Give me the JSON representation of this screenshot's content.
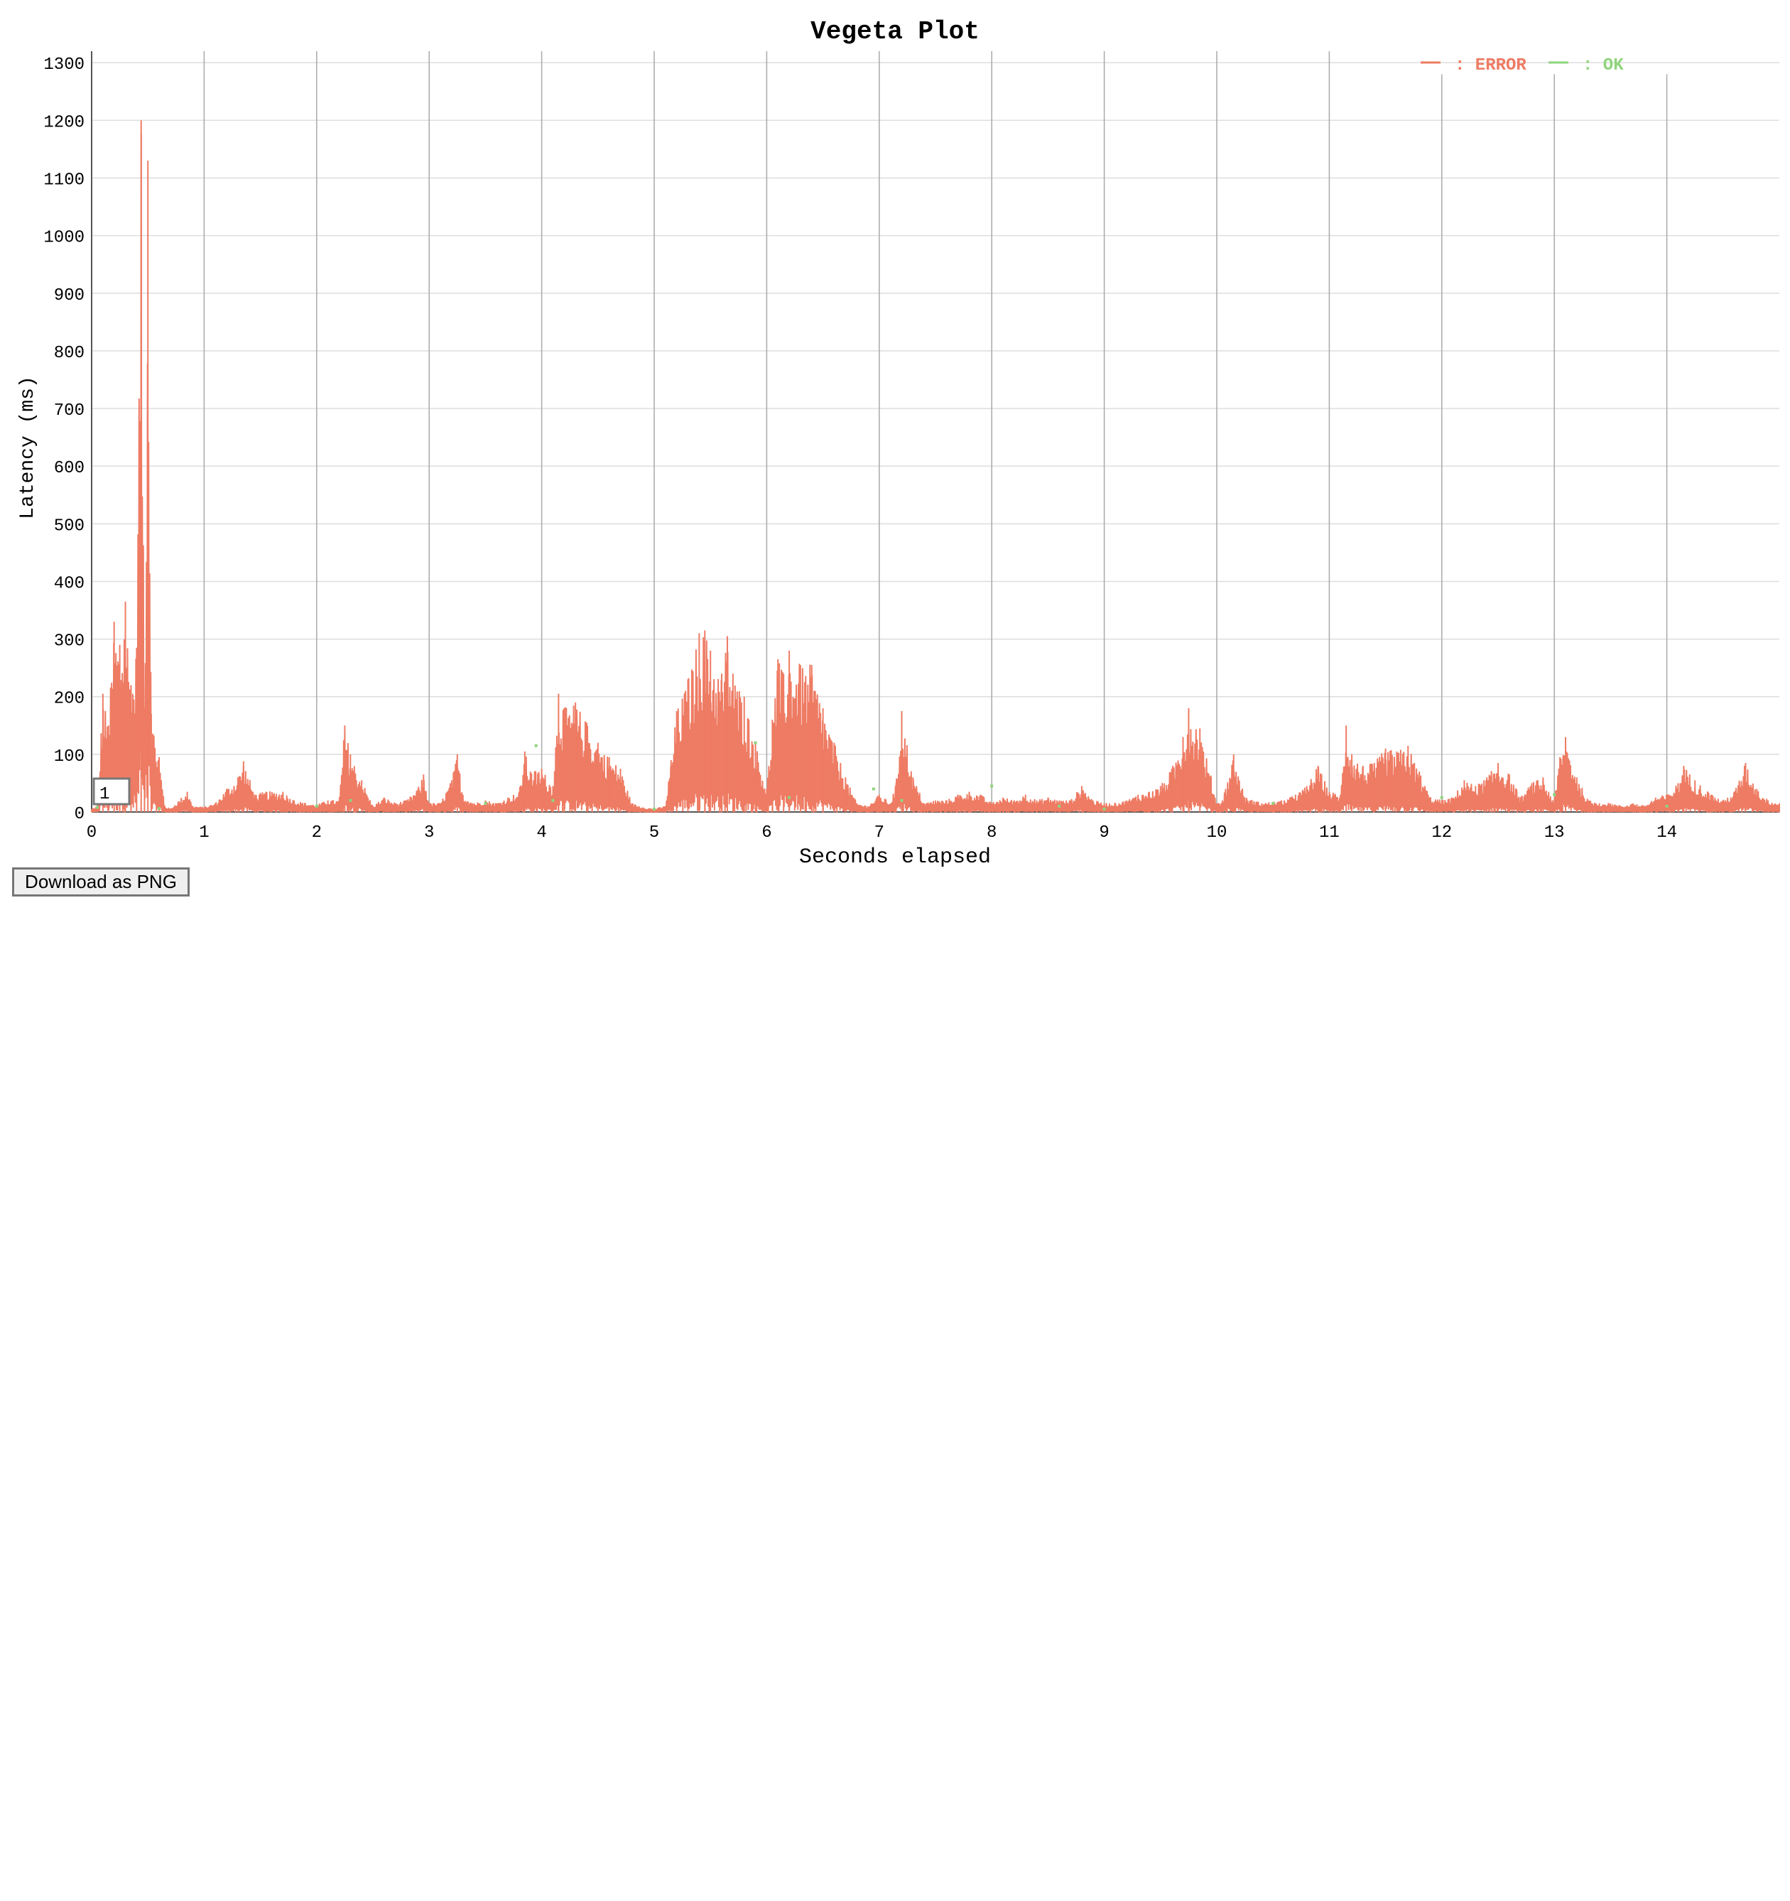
{
  "chart_data": {
    "type": "line",
    "title": "Vegeta Plot",
    "xlabel": "Seconds elapsed",
    "ylabel": "Latency (ms)",
    "xlim": [
      0,
      15
    ],
    "ylim": [
      0,
      1320
    ],
    "x_ticks": [
      0,
      1,
      2,
      3,
      4,
      5,
      6,
      7,
      8,
      9,
      10,
      11,
      12,
      13,
      14
    ],
    "y_ticks": [
      0,
      100,
      200,
      300,
      400,
      500,
      600,
      700,
      800,
      900,
      1000,
      1100,
      1200,
      1300
    ],
    "grid": {
      "x": true,
      "y": true
    },
    "legend_position": "top-right",
    "range_selector_value": "1",
    "series": [
      {
        "name": "ERROR",
        "legend_label": ": ERROR",
        "color": "#ee7b63",
        "envelope": [
          [
            0.0,
            5
          ],
          [
            0.05,
            10
          ],
          [
            0.1,
            205
          ],
          [
            0.15,
            150
          ],
          [
            0.2,
            330
          ],
          [
            0.25,
            290
          ],
          [
            0.3,
            365
          ],
          [
            0.35,
            220
          ],
          [
            0.4,
            285
          ],
          [
            0.44,
            1200
          ],
          [
            0.47,
            180
          ],
          [
            0.5,
            1130
          ],
          [
            0.53,
            170
          ],
          [
            0.6,
            95
          ],
          [
            0.65,
            10
          ],
          [
            0.7,
            5
          ],
          [
            0.85,
            35
          ],
          [
            0.9,
            10
          ],
          [
            1.0,
            8
          ],
          [
            1.1,
            15
          ],
          [
            1.2,
            40
          ],
          [
            1.3,
            60
          ],
          [
            1.35,
            88
          ],
          [
            1.45,
            30
          ],
          [
            1.55,
            35
          ],
          [
            1.7,
            35
          ],
          [
            1.8,
            20
          ],
          [
            1.9,
            15
          ],
          [
            2.0,
            12
          ],
          [
            2.1,
            20
          ],
          [
            2.2,
            20
          ],
          [
            2.25,
            150
          ],
          [
            2.3,
            100
          ],
          [
            2.4,
            55
          ],
          [
            2.5,
            10
          ],
          [
            2.6,
            25
          ],
          [
            2.7,
            15
          ],
          [
            2.8,
            20
          ],
          [
            2.9,
            40
          ],
          [
            2.95,
            65
          ],
          [
            3.0,
            15
          ],
          [
            3.1,
            15
          ],
          [
            3.2,
            55
          ],
          [
            3.25,
            100
          ],
          [
            3.3,
            30
          ],
          [
            3.4,
            15
          ],
          [
            3.5,
            20
          ],
          [
            3.6,
            15
          ],
          [
            3.7,
            25
          ],
          [
            3.8,
            35
          ],
          [
            3.85,
            105
          ],
          [
            3.9,
            70
          ],
          [
            4.0,
            75
          ],
          [
            4.1,
            45
          ],
          [
            4.15,
            205
          ],
          [
            4.2,
            180
          ],
          [
            4.3,
            190
          ],
          [
            4.4,
            155
          ],
          [
            4.5,
            120
          ],
          [
            4.6,
            95
          ],
          [
            4.7,
            75
          ],
          [
            4.8,
            15
          ],
          [
            4.9,
            8
          ],
          [
            5.0,
            5
          ],
          [
            5.1,
            10
          ],
          [
            5.15,
            90
          ],
          [
            5.2,
            175
          ],
          [
            5.3,
            230
          ],
          [
            5.4,
            310
          ],
          [
            5.45,
            315
          ],
          [
            5.5,
            280
          ],
          [
            5.6,
            240
          ],
          [
            5.65,
            305
          ],
          [
            5.7,
            240
          ],
          [
            5.8,
            200
          ],
          [
            5.9,
            120
          ],
          [
            6.0,
            40
          ],
          [
            6.05,
            160
          ],
          [
            6.1,
            265
          ],
          [
            6.15,
            240
          ],
          [
            6.2,
            280
          ],
          [
            6.3,
            255
          ],
          [
            6.4,
            255
          ],
          [
            6.5,
            180
          ],
          [
            6.6,
            120
          ],
          [
            6.7,
            60
          ],
          [
            6.8,
            15
          ],
          [
            6.9,
            10
          ],
          [
            7.0,
            30
          ],
          [
            7.1,
            15
          ],
          [
            7.15,
            50
          ],
          [
            7.2,
            175
          ],
          [
            7.3,
            60
          ],
          [
            7.4,
            15
          ],
          [
            7.5,
            20
          ],
          [
            7.6,
            20
          ],
          [
            7.7,
            30
          ],
          [
            7.8,
            35
          ],
          [
            7.9,
            30
          ],
          [
            8.0,
            15
          ],
          [
            8.1,
            25
          ],
          [
            8.2,
            20
          ],
          [
            8.3,
            30
          ],
          [
            8.4,
            20
          ],
          [
            8.5,
            25
          ],
          [
            8.6,
            20
          ],
          [
            8.7,
            20
          ],
          [
            8.8,
            45
          ],
          [
            8.9,
            20
          ],
          [
            9.0,
            15
          ],
          [
            9.1,
            15
          ],
          [
            9.2,
            20
          ],
          [
            9.3,
            30
          ],
          [
            9.4,
            35
          ],
          [
            9.5,
            45
          ],
          [
            9.6,
            75
          ],
          [
            9.7,
            130
          ],
          [
            9.75,
            180
          ],
          [
            9.85,
            145
          ],
          [
            9.95,
            60
          ],
          [
            10.0,
            15
          ],
          [
            10.05,
            20
          ],
          [
            10.15,
            100
          ],
          [
            10.25,
            25
          ],
          [
            10.4,
            15
          ],
          [
            10.6,
            20
          ],
          [
            10.7,
            30
          ],
          [
            10.8,
            45
          ],
          [
            10.9,
            80
          ],
          [
            11.0,
            35
          ],
          [
            11.1,
            30
          ],
          [
            11.15,
            150
          ],
          [
            11.2,
            100
          ],
          [
            11.3,
            80
          ],
          [
            11.4,
            85
          ],
          [
            11.5,
            110
          ],
          [
            11.6,
            105
          ],
          [
            11.7,
            115
          ],
          [
            11.8,
            70
          ],
          [
            11.9,
            25
          ],
          [
            12.0,
            20
          ],
          [
            12.1,
            25
          ],
          [
            12.2,
            55
          ],
          [
            12.3,
            45
          ],
          [
            12.4,
            60
          ],
          [
            12.5,
            85
          ],
          [
            12.6,
            65
          ],
          [
            12.7,
            25
          ],
          [
            12.8,
            50
          ],
          [
            12.9,
            60
          ],
          [
            12.95,
            35
          ],
          [
            13.0,
            20
          ],
          [
            13.05,
            95
          ],
          [
            13.1,
            130
          ],
          [
            13.2,
            60
          ],
          [
            13.3,
            20
          ],
          [
            13.4,
            15
          ],
          [
            13.5,
            15
          ],
          [
            13.6,
            10
          ],
          [
            13.7,
            15
          ],
          [
            13.8,
            10
          ],
          [
            13.9,
            25
          ],
          [
            14.0,
            30
          ],
          [
            14.1,
            50
          ],
          [
            14.15,
            80
          ],
          [
            14.25,
            55
          ],
          [
            14.4,
            30
          ],
          [
            14.5,
            20
          ],
          [
            14.6,
            35
          ],
          [
            14.7,
            85
          ],
          [
            14.8,
            40
          ],
          [
            14.9,
            20
          ],
          [
            15.0,
            15
          ]
        ]
      },
      {
        "name": "OK",
        "legend_label": ": OK",
        "color": "#8fd47d",
        "points": [
          [
            0.05,
            8
          ],
          [
            0.6,
            6
          ],
          [
            2.0,
            10
          ],
          [
            2.3,
            20
          ],
          [
            3.5,
            15
          ],
          [
            3.95,
            115
          ],
          [
            4.1,
            20
          ],
          [
            5.0,
            5
          ],
          [
            5.9,
            120
          ],
          [
            6.2,
            25
          ],
          [
            6.95,
            40
          ],
          [
            7.2,
            20
          ],
          [
            8.0,
            45
          ],
          [
            8.6,
            10
          ],
          [
            9.0,
            5
          ],
          [
            10.5,
            15
          ],
          [
            12.0,
            25
          ],
          [
            13.0,
            30
          ],
          [
            14.0,
            10
          ]
        ]
      }
    ]
  },
  "download_button_label": "Download as PNG"
}
